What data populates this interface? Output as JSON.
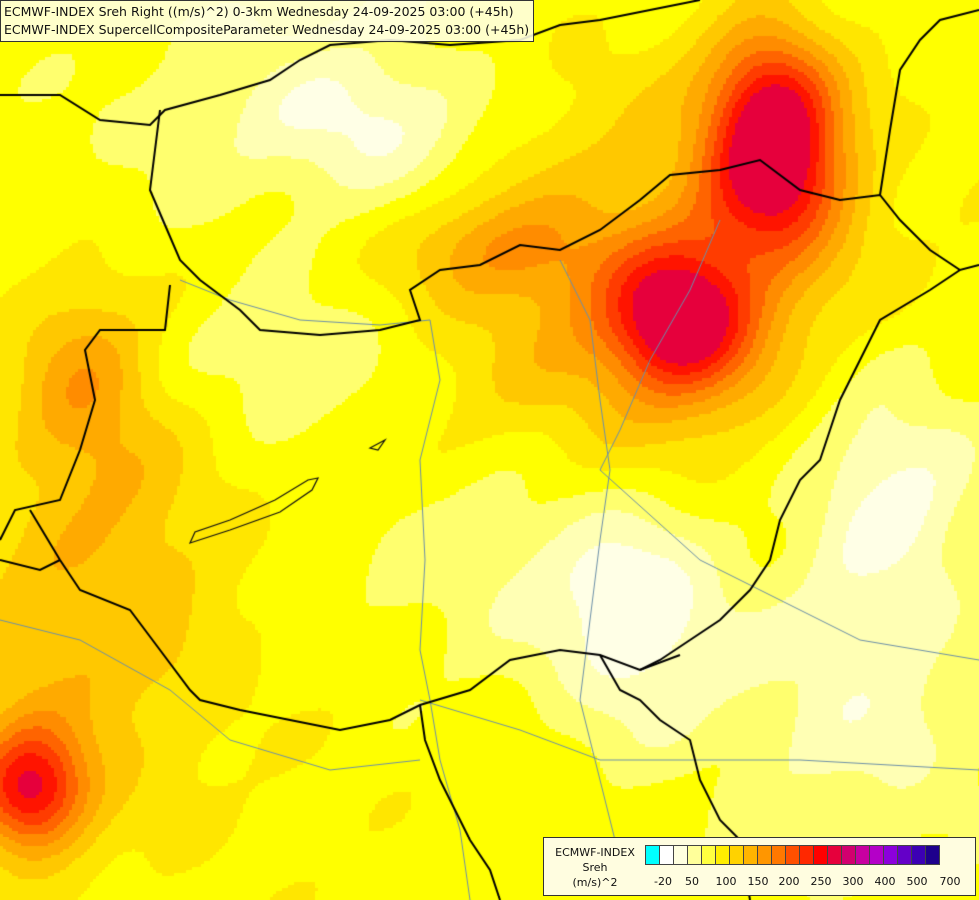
{
  "title": {
    "line1": "ECMWF-INDEX Sreh Right ((m/s)^2) 0-3km Wednesday 24-09-2025 03:00 (+45h)",
    "line2": "ECMWF-INDEX SupercellCompositeParameter Wednesday 24-09-2025 03:00 (+45h)"
  },
  "legend": {
    "model": "ECMWF-INDEX",
    "variable": "Sreh",
    "unit": "(m/s)^2",
    "swatch_colors": [
      "#00ffff",
      "#ffffff",
      "#ffffe0",
      "#ffff9a",
      "#ffff40",
      "#ffee00",
      "#ffd200",
      "#ffb400",
      "#ff9600",
      "#ff7800",
      "#ff5000",
      "#ff2800",
      "#ff0000",
      "#e6003c",
      "#d2006e",
      "#c800a0",
      "#b400c8",
      "#8c00dc",
      "#6400c8",
      "#3c00b4",
      "#1e008c"
    ],
    "tick_labels": [
      "-20",
      "50",
      "100",
      "150",
      "200",
      "250",
      "300",
      "400",
      "500",
      "700"
    ]
  }
}
